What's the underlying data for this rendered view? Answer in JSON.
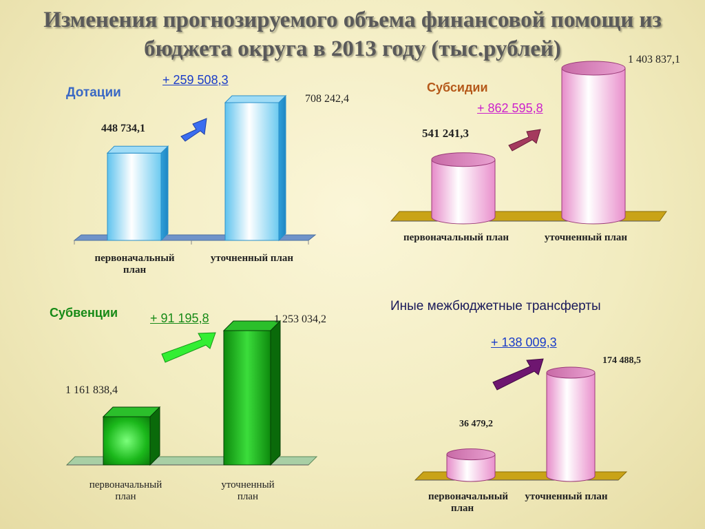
{
  "title": {
    "line1": "Изменения прогнозируемого объема финансовой помощи из",
    "line2": "бюджета округа в 2013 году (тыс.рублей)"
  },
  "colors": {
    "dotacii": "#7fd0f2",
    "subsidii": "#f2a6d8",
    "subvencii": "#1fa51f",
    "inye": "#f2a6d8",
    "arrow_dotacii": "#3a6df0",
    "arrow_subsidii": "#a43a5e",
    "arrow_subvencii": "#33ee33",
    "arrow_inye": "#6e1670"
  },
  "chart_data": [
    {
      "type": "bar",
      "title": "Дотации",
      "change": "+ 259 508,3",
      "categories": [
        "первоначальный план",
        "уточненный план"
      ],
      "values": [
        448734.1,
        708242.4
      ],
      "value_labels": [
        "448 734,1",
        "708 242,4"
      ],
      "shape": "box",
      "grid": false
    },
    {
      "type": "bar",
      "title": "Субсидии",
      "change": "+ 862 595,8",
      "categories": [
        "первоначальный план",
        "уточненный план"
      ],
      "values": [
        541241.3,
        1403837.1
      ],
      "value_labels": [
        "541 241,3",
        "1 403 837,1"
      ],
      "shape": "cylinder",
      "grid": false
    },
    {
      "type": "bar",
      "title": "Субвенции",
      "change": "+ 91 195,8",
      "categories": [
        "первоначальный план",
        "уточненный план"
      ],
      "values": [
        1161838.4,
        1253034.2
      ],
      "value_labels": [
        "1 161 838,4",
        "1 253 034,2"
      ],
      "shape": "box",
      "grid": false
    },
    {
      "type": "bar",
      "title": "Иные межбюджетные трансферты",
      "change": "+ 138 009,3",
      "categories": [
        "первоначальный план",
        "уточненный план"
      ],
      "values": [
        36479.2,
        174488.5
      ],
      "value_labels": [
        "36 479,2",
        "174 488,5"
      ],
      "shape": "cylinder",
      "grid": false
    }
  ],
  "labels": {
    "d_cat1a": "первоначальный",
    "d_cat1b": "план",
    "d_cat2": "уточненный план",
    "s_cat1": "первоначальный план",
    "s_cat2": "уточненный план",
    "v_cat1a": "первоначальный",
    "v_cat1b": "план",
    "v_cat2a": "уточненный",
    "v_cat2b": "план",
    "i_cat1a": "первоначальный",
    "i_cat1b": "план",
    "i_cat2": "уточненный план"
  }
}
